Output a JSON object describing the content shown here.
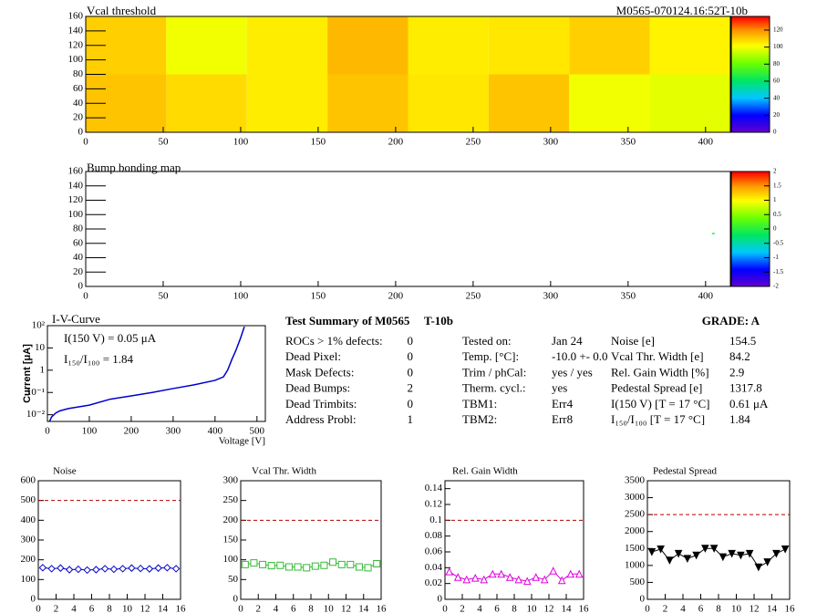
{
  "header": {
    "title": "M0565-070124.16:52T-10b"
  },
  "chart_data": [
    {
      "type": "heatmap",
      "title": "Vcal threshold",
      "xbins": [
        0,
        52,
        104,
        156,
        208,
        260,
        312,
        364,
        416
      ],
      "ybins": [
        0,
        80,
        160
      ],
      "values": [
        [
          112,
          108,
          105,
          112,
          106,
          112,
          100,
          98
        ],
        [
          110,
          100,
          105,
          114,
          105,
          106,
          110,
          104
        ]
      ],
      "xlim": [
        0,
        416
      ],
      "xticks": [
        0,
        50,
        100,
        150,
        200,
        250,
        300,
        350,
        400
      ],
      "ylim": [
        0,
        160
      ],
      "yticks": [
        0,
        20,
        40,
        60,
        80,
        100,
        120,
        140,
        160
      ],
      "zlim": [
        0,
        136
      ],
      "zticks": [
        0,
        20,
        40,
        60,
        80,
        100,
        120
      ]
    },
    {
      "type": "heatmap",
      "title": "Bump bonding map",
      "points": [
        {
          "x": 405,
          "y": 74,
          "value": 0
        }
      ],
      "xlim": [
        0,
        416
      ],
      "xticks": [
        0,
        50,
        100,
        150,
        200,
        250,
        300,
        350,
        400
      ],
      "ylim": [
        0,
        160
      ],
      "yticks": [
        0,
        20,
        40,
        60,
        80,
        100,
        120,
        140,
        160
      ],
      "zlim": [
        -2,
        2
      ],
      "zticks": [
        -2,
        -1.5,
        -1,
        -0.5,
        0,
        0.5,
        1,
        1.5,
        2
      ]
    },
    {
      "type": "line",
      "title": "I-V-Curve",
      "xlabel": "Voltage [V]",
      "ylabel": "Current [μA]",
      "annotations": [
        "I(150 V) = 0.05 μA",
        "I₁₅₀/I₁₀₀ =  1.84"
      ],
      "x": [
        5,
        10,
        20,
        30,
        50,
        100,
        150,
        200,
        250,
        300,
        350,
        400,
        420,
        430,
        440,
        450,
        460,
        470
      ],
      "values": [
        0.005,
        0.008,
        0.012,
        0.015,
        0.019,
        0.027,
        0.05,
        0.07,
        0.1,
        0.15,
        0.22,
        0.35,
        0.5,
        1,
        3,
        8,
        25,
        90
      ],
      "color": "#0000cc",
      "log_y": true,
      "xlim": [
        0,
        520
      ],
      "xticks": [
        0,
        100,
        200,
        300,
        400,
        500
      ],
      "ylim": [
        0.005,
        100
      ],
      "yticks": [
        {
          "value": 0.01,
          "label": "10⁻²"
        },
        {
          "value": 0.1,
          "label": "10⁻¹"
        },
        1,
        10,
        {
          "value": 100,
          "label": "10²"
        }
      ]
    },
    {
      "type": "line",
      "title": "Noise",
      "marker": "diamond",
      "color": "#0000cc",
      "reference": 500,
      "x": [
        0.5,
        1.5,
        2.5,
        3.5,
        4.5,
        5.5,
        6.5,
        7.5,
        8.5,
        9.5,
        10.5,
        11.5,
        12.5,
        13.5,
        14.5,
        15.5
      ],
      "values": [
        160,
        155,
        158,
        150,
        152,
        148,
        150,
        155,
        152,
        155,
        158,
        156,
        154,
        158,
        160,
        155
      ],
      "xlim": [
        0,
        16
      ],
      "xticks": [
        0,
        2,
        4,
        6,
        8,
        10,
        12,
        14,
        16
      ],
      "ylim": [
        0,
        600
      ],
      "yticks": [
        0,
        100,
        200,
        300,
        400,
        500,
        600
      ]
    },
    {
      "type": "line",
      "title": "Vcal Thr. Width",
      "marker": "square",
      "color": "#33bb33",
      "reference": 200,
      "x": [
        0.5,
        1.5,
        2.5,
        3.5,
        4.5,
        5.5,
        6.5,
        7.5,
        8.5,
        9.5,
        10.5,
        11.5,
        12.5,
        13.5,
        14.5,
        15.5
      ],
      "values": [
        88,
        92,
        88,
        85,
        86,
        82,
        82,
        80,
        84,
        86,
        94,
        88,
        88,
        82,
        80,
        90
      ],
      "xlim": [
        0,
        16
      ],
      "xticks": [
        0,
        2,
        4,
        6,
        8,
        10,
        12,
        14,
        16
      ],
      "ylim": [
        0,
        300
      ],
      "yticks": [
        0,
        50,
        100,
        150,
        200,
        250,
        300
      ]
    },
    {
      "type": "line",
      "title": "Rel. Gain Width",
      "marker": "triangle",
      "color": "#dd00dd",
      "reference": 0.1,
      "x": [
        0.5,
        1.5,
        2.5,
        3.5,
        4.5,
        5.5,
        6.5,
        7.5,
        8.5,
        9.5,
        10.5,
        11.5,
        12.5,
        13.5,
        14.5,
        15.5
      ],
      "values": [
        0.035,
        0.028,
        0.025,
        0.027,
        0.025,
        0.032,
        0.032,
        0.028,
        0.025,
        0.023,
        0.028,
        0.025,
        0.036,
        0.024,
        0.032,
        0.032
      ],
      "xlim": [
        0,
        16
      ],
      "xticks": [
        0,
        2,
        4,
        6,
        8,
        10,
        12,
        14,
        16
      ],
      "ylim": [
        0,
        0.15
      ],
      "yticks": [
        0,
        0.02,
        0.04,
        0.06,
        0.08,
        0.1,
        0.12,
        0.14
      ]
    },
    {
      "type": "line",
      "title": "Pedestal Spread",
      "marker": "triangle-down",
      "color": "#000000",
      "reference": 2500,
      "x": [
        0.5,
        1.5,
        2.5,
        3.5,
        4.5,
        5.5,
        6.5,
        7.5,
        8.5,
        9.5,
        10.5,
        11.5,
        12.5,
        13.5,
        14.5,
        15.5
      ],
      "values": [
        1400,
        1480,
        1150,
        1350,
        1200,
        1300,
        1500,
        1500,
        1250,
        1350,
        1300,
        1350,
        950,
        1100,
        1350,
        1480
      ],
      "xlim": [
        0,
        16
      ],
      "xticks": [
        0,
        2,
        4,
        6,
        8,
        10,
        12,
        14,
        16
      ],
      "ylim": [
        0,
        3500
      ],
      "yticks": [
        0,
        500,
        1000,
        1500,
        2000,
        2500,
        3000,
        3500
      ]
    }
  ],
  "summary": {
    "title": "Test Summary of M0565",
    "module_type": "T-10b",
    "grade": "GRADE:  A",
    "columns": [
      [
        [
          "ROCs > 1% defects:",
          0
        ],
        [
          "Dead Pixel:",
          0
        ],
        [
          "Mask Defects:",
          0
        ],
        [
          "Dead Bumps:",
          2
        ],
        [
          "Dead Trimbits:",
          0
        ],
        [
          "Address Probl:",
          1
        ]
      ],
      [
        [
          "Tested on:",
          "Jan 24"
        ],
        [
          "Temp. [°C]:",
          "-10.0 +- 0.0"
        ],
        [
          "Trim / phCal:",
          "yes / yes"
        ],
        [
          "Therm. cycl.:",
          "yes"
        ],
        [
          "TBM1:",
          "Err4"
        ],
        [
          "TBM2:",
          "Err8"
        ]
      ],
      [
        [
          "Noise [e]",
          "154.5"
        ],
        [
          "Vcal Thr. Width [e]",
          "84.2"
        ],
        [
          "Rel. Gain Width [%]",
          "2.9"
        ],
        [
          "Pedestal Spread [e]",
          "1317.8"
        ],
        [
          "I(150 V) [T = 17 °C]",
          "0.61 μA"
        ],
        [
          "I₁₅₀/I₁₀₀  [T = 17 °C]",
          "1.84"
        ]
      ]
    ]
  }
}
